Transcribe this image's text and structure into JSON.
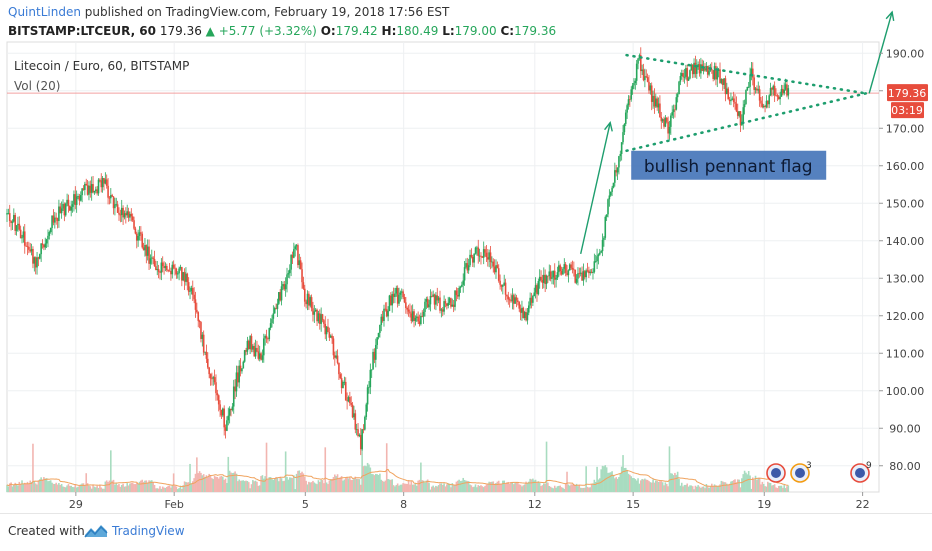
{
  "header": {
    "author": "QuintLinden",
    "published_text": "published on TradingView.com, February 19, 2018 17:56 EST",
    "symbol": "BITSTAMP:LTCEUR, 60",
    "last_price": "179.36",
    "change": "+5.77 (+3.32%)",
    "open_label": "O:",
    "open": "179.42",
    "high_label": "H:",
    "high": "180.49",
    "low_label": "L:",
    "low": "179.00",
    "close_label": "C:",
    "close": "179.36"
  },
  "legend": {
    "instrument": "Litecoin / Euro, 60, BITSTAMP",
    "volume": "Vol (20)"
  },
  "price_badge": {
    "price": "179.36",
    "countdown": "03:19"
  },
  "annotation": {
    "text": "bullish pennant flag"
  },
  "event_badges": [
    {
      "count": ""
    },
    {
      "count": "3"
    },
    {
      "count": "9"
    }
  ],
  "footer": {
    "created_with": "Created with",
    "brand": "TradingView"
  },
  "colors": {
    "up": "#26a65b",
    "down": "#e74c3c",
    "pennant": "#1e9e6e",
    "annotation_bg": "#3d6fb6"
  },
  "chart_data": {
    "type": "candlestick",
    "xlabel": "",
    "ylabel": "",
    "ylim": [
      73,
      193
    ],
    "y_ticks": [
      80,
      90,
      100,
      110,
      120,
      130,
      140,
      150,
      160,
      170,
      180,
      190
    ],
    "x_ticks": [
      "29",
      "Feb",
      "5",
      "8",
      "12",
      "15",
      "19",
      "22"
    ],
    "x_tick_days": [
      29,
      32,
      36,
      39,
      43,
      46,
      50,
      53
    ],
    "x_range_days": [
      26.9,
      53.5
    ],
    "last_day": 50.75,
    "current_price": 179.36,
    "grid": true,
    "price_path": [
      [
        26.9,
        147
      ],
      [
        27.3,
        143
      ],
      [
        27.8,
        134
      ],
      [
        28.3,
        146
      ],
      [
        28.8,
        150
      ],
      [
        29.4,
        154
      ],
      [
        29.9,
        155
      ],
      [
        30.2,
        148
      ],
      [
        30.6,
        146
      ],
      [
        31.0,
        140
      ],
      [
        31.4,
        133
      ],
      [
        31.9,
        132
      ],
      [
        32.3,
        131
      ],
      [
        32.6,
        125
      ],
      [
        32.9,
        112
      ],
      [
        33.2,
        102
      ],
      [
        33.6,
        90
      ],
      [
        33.9,
        103
      ],
      [
        34.3,
        113
      ],
      [
        34.6,
        108
      ],
      [
        35.0,
        120
      ],
      [
        35.4,
        130
      ],
      [
        35.7,
        139
      ],
      [
        36.0,
        125
      ],
      [
        36.4,
        120
      ],
      [
        36.8,
        113
      ],
      [
        37.1,
        103
      ],
      [
        37.4,
        95
      ],
      [
        37.7,
        86
      ],
      [
        38.0,
        106
      ],
      [
        38.3,
        118
      ],
      [
        38.7,
        126
      ],
      [
        39.0,
        124
      ],
      [
        39.4,
        118
      ],
      [
        39.8,
        125
      ],
      [
        40.2,
        122
      ],
      [
        40.6,
        125
      ],
      [
        41.0,
        135
      ],
      [
        41.5,
        138
      ],
      [
        41.9,
        131
      ],
      [
        42.3,
        124
      ],
      [
        42.7,
        120
      ],
      [
        43.1,
        128
      ],
      [
        43.5,
        131
      ],
      [
        43.9,
        133
      ],
      [
        44.3,
        130
      ],
      [
        44.7,
        131
      ],
      [
        45.0,
        136
      ],
      [
        45.2,
        148
      ],
      [
        45.4,
        157
      ],
      [
        45.6,
        163
      ],
      [
        45.8,
        175
      ],
      [
        46.0,
        183
      ],
      [
        46.2,
        188
      ],
      [
        46.5,
        180
      ],
      [
        46.8,
        174
      ],
      [
        47.1,
        170
      ],
      [
        47.4,
        182
      ],
      [
        47.8,
        186
      ],
      [
        48.2,
        186
      ],
      [
        48.6,
        184
      ],
      [
        49.0,
        178
      ],
      [
        49.3,
        172
      ],
      [
        49.6,
        185
      ],
      [
        49.9,
        176
      ],
      [
        50.2,
        179
      ],
      [
        50.5,
        180
      ],
      [
        50.75,
        179.4
      ]
    ],
    "pennant": {
      "upper": [
        [
          45.8,
          189.5
        ],
        [
          53.1,
          179.3
        ]
      ],
      "lower": [
        [
          45.8,
          164.0
        ],
        [
          53.1,
          179.3
        ]
      ]
    },
    "arrows": [
      {
        "from": [
          44.4,
          136.5
        ],
        "to": [
          45.3,
          171.5
        ]
      },
      {
        "from": [
          53.2,
          179.3
        ],
        "to": [
          53.9,
          201
        ]
      }
    ],
    "annotation_pos": {
      "day": 48.9,
      "price": 160
    }
  }
}
